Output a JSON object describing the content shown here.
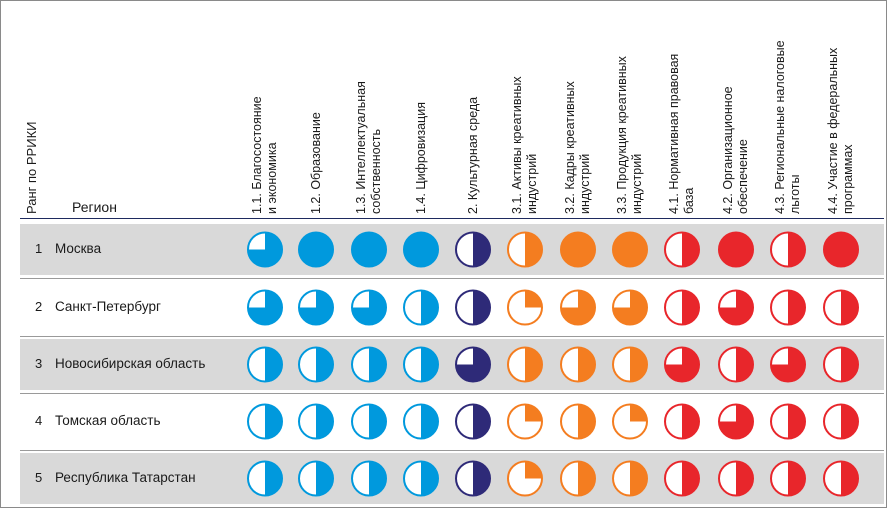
{
  "header": {
    "rank_label": "Ранг по РРИКИ",
    "region_label": "Регион"
  },
  "columns": [
    {
      "label": "1.1. Благосостояние\nи экономика",
      "color": "#0099dd"
    },
    {
      "label": "1.2. Образование",
      "color": "#0099dd"
    },
    {
      "label": "1.3. Интеллектуальная\nсобственность",
      "color": "#0099dd"
    },
    {
      "label": "1.4. Цифровизация",
      "color": "#0099dd"
    },
    {
      "label": "2. Культурная среда",
      "color": "#2e2a78"
    },
    {
      "label": "3.1. Активы креативных\nиндустрий",
      "color": "#f47d20"
    },
    {
      "label": "3.2. Кадры креативных\nиндустрий",
      "color": "#f47d20"
    },
    {
      "label": "3.3. Продукция креативных\nиндустрий",
      "color": "#f47d20"
    },
    {
      "label": "4.1. Нормативная правовая\nбаза",
      "color": "#e8262b"
    },
    {
      "label": "4.2. Организационное\nобеспечение",
      "color": "#e8262b"
    },
    {
      "label": "4.3. Региональные налоговые\nльготы",
      "color": "#e8262b"
    },
    {
      "label": "4.4. Участие в федеральных\nпрограммах",
      "color": "#e8262b"
    }
  ],
  "rows": [
    {
      "rank": "1",
      "region": "Москва"
    },
    {
      "rank": "2",
      "region": "Санкт-Петербург"
    },
    {
      "rank": "3",
      "region": "Новосибирская область"
    },
    {
      "rank": "4",
      "region": "Томская область"
    },
    {
      "rank": "5",
      "region": "Республика Татарстан"
    }
  ],
  "chart_data": {
    "type": "table",
    "title": "",
    "scale_note": "",
    "categories": [
      "1.1",
      "1.2",
      "1.3",
      "1.4",
      "2",
      "3.1",
      "3.2",
      "3.3",
      "4.1",
      "4.2",
      "4.3",
      "4.4"
    ],
    "series": [
      {
        "name": "Москва",
        "values": [
          0.75,
          1,
          1,
          1,
          0.5,
          0.5,
          1,
          1,
          0.5,
          1,
          0.5,
          1
        ]
      },
      {
        "name": "Санкт-Петербург",
        "values": [
          0.75,
          0.75,
          0.75,
          0.5,
          0.5,
          0.25,
          0.75,
          0.75,
          0.5,
          0.75,
          0.5,
          0.5
        ]
      },
      {
        "name": "Новосибирская область",
        "values": [
          0.5,
          0.5,
          0.5,
          0.5,
          0.75,
          0.5,
          0.5,
          0.5,
          0.75,
          0.5,
          0.75,
          0.5
        ]
      },
      {
        "name": "Томская область",
        "values": [
          0.5,
          0.5,
          0.5,
          0.5,
          0.5,
          0.25,
          0.5,
          0.25,
          0.5,
          0.75,
          0.5,
          0.5
        ]
      },
      {
        "name": "Республика Татарстан",
        "values": [
          0.5,
          0.5,
          0.5,
          0.5,
          0.5,
          0.25,
          0.5,
          0.5,
          0.5,
          0.5,
          0.5,
          0.5
        ]
      }
    ]
  }
}
